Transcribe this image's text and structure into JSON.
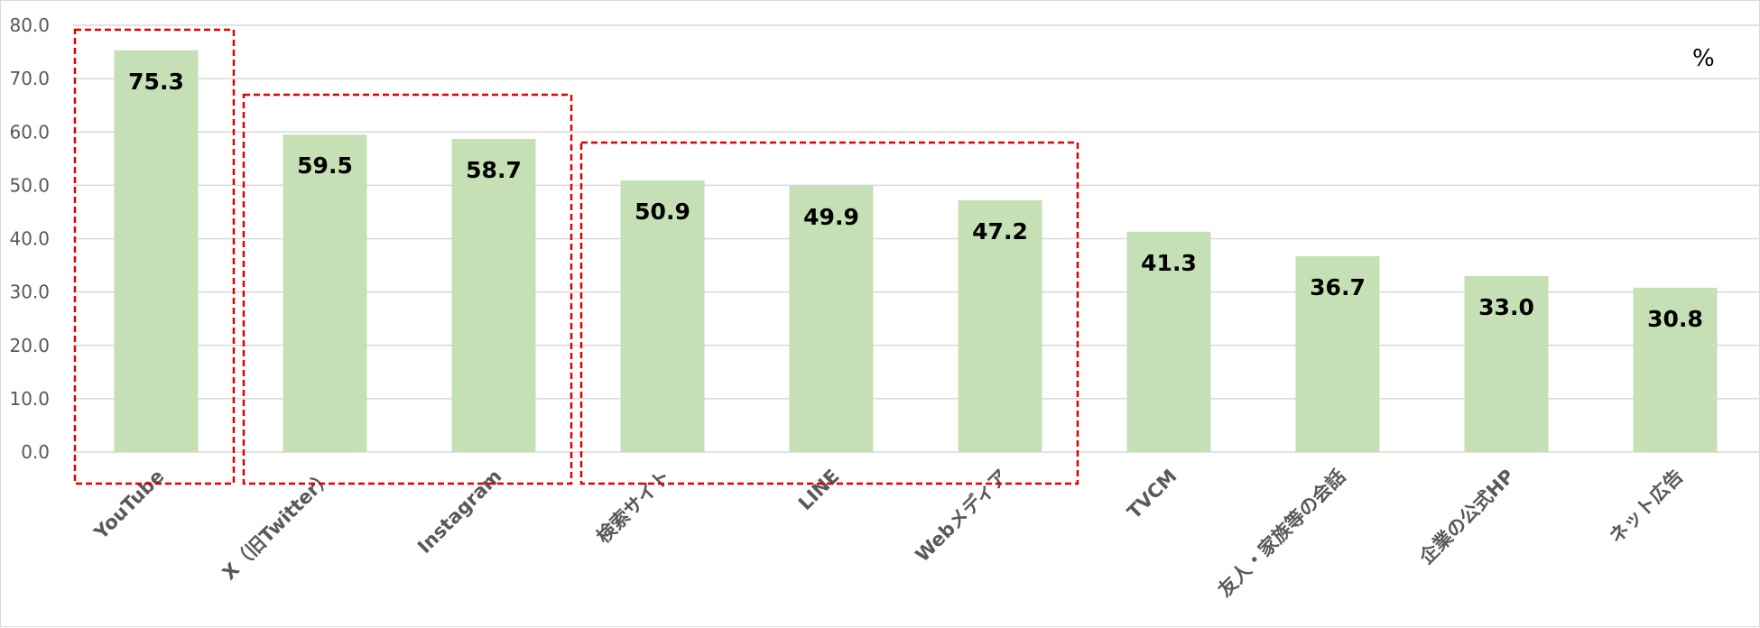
{
  "chart_data": {
    "type": "bar",
    "categories": [
      "YouTube",
      "X（旧Twitter）",
      "Instagram",
      "検索サイト",
      "LINE",
      "Webメディア",
      "TVCM",
      "友人・家族等の会話",
      "企業の公式HP",
      "ネット広告"
    ],
    "values": [
      75.3,
      59.5,
      58.7,
      50.9,
      49.9,
      47.2,
      41.3,
      36.7,
      33.0,
      30.8
    ],
    "data_labels": [
      "75.3",
      "59.5",
      "58.7",
      "50.9",
      "49.9",
      "47.2",
      "41.3",
      "36.7",
      "33.0",
      "30.8"
    ],
    "y_ticks": [
      "0.0",
      "10.0",
      "20.0",
      "30.0",
      "40.0",
      "50.0",
      "60.0",
      "70.0",
      "80.0"
    ],
    "ylim": [
      0,
      80
    ],
    "unit_label": "%",
    "grid": true,
    "legend": "none",
    "highlight_groups": [
      [
        0,
        0
      ],
      [
        1,
        2
      ],
      [
        3,
        5
      ]
    ],
    "colors": {
      "bar": "#c5e0b4",
      "grid": "#d9d9d9",
      "highlight_box": "#e00000"
    }
  }
}
